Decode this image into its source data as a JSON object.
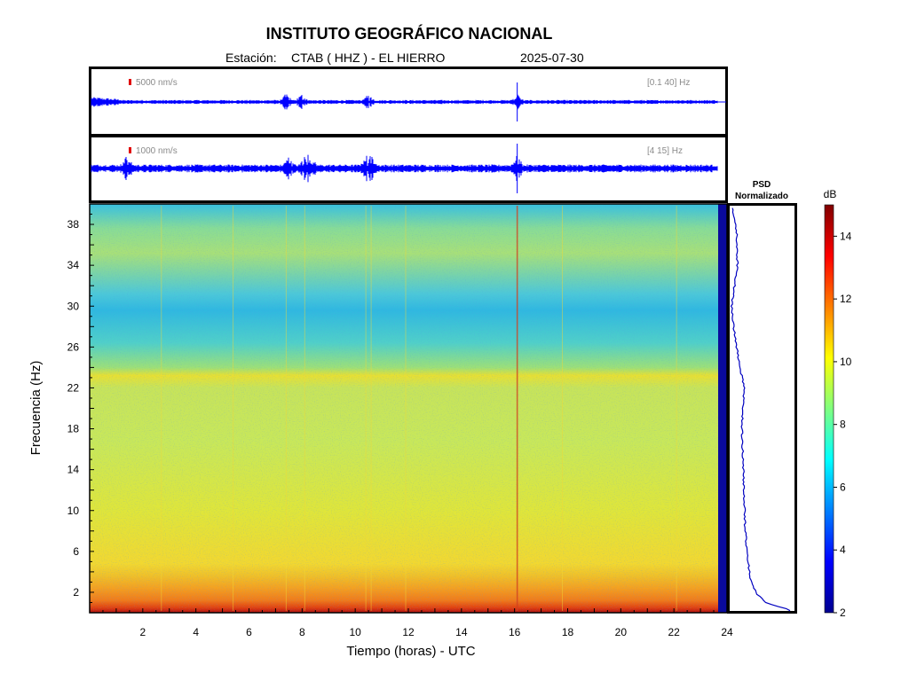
{
  "header": {
    "title": "INSTITUTO GEOGRÁFICO NACIONAL",
    "station_label": "Estación:",
    "station_value": "CTAB ( HHZ ) - EL HIERRO",
    "date": "2025-07-30"
  },
  "chart_data": [
    {
      "type": "line",
      "name": "seismogram-broadband",
      "scale_label": "5000 nm/s",
      "band_label": "[0.1 40] Hz",
      "x_range_hours": [
        0,
        23.7
      ],
      "events_hours": [
        7.4,
        8.0,
        10.5,
        16.1
      ]
    },
    {
      "type": "line",
      "name": "seismogram-filtered",
      "scale_label": "1000 nm/s",
      "band_label": "[4 15] Hz",
      "x_range_hours": [
        0,
        23.7
      ],
      "events_hours": [
        1.4,
        7.5,
        8.1,
        8.3,
        10.4,
        10.6,
        16.1
      ]
    },
    {
      "type": "heatmap",
      "name": "spectrogram",
      "xlabel": "Tiempo (horas) - UTC",
      "ylabel": "Frecuencia  (Hz)",
      "xlim": [
        0,
        24
      ],
      "ylim": [
        0,
        40
      ],
      "x_ticks": [
        2,
        4,
        6,
        8,
        10,
        12,
        14,
        16,
        18,
        20,
        22,
        24
      ],
      "y_ticks": [
        2,
        6,
        10,
        14,
        18,
        22,
        26,
        30,
        34,
        38
      ],
      "colormap": "jet",
      "color_range_db": [
        2,
        15
      ]
    },
    {
      "type": "line",
      "name": "psd-normalized",
      "title_line1": "PSD",
      "title_line2": "Normalizado",
      "profile": [
        {
          "f": 0.3,
          "v": 0.92
        },
        {
          "f": 1.0,
          "v": 0.55
        },
        {
          "f": 2.0,
          "v": 0.4
        },
        {
          "f": 3.0,
          "v": 0.33
        },
        {
          "f": 5.0,
          "v": 0.28
        },
        {
          "f": 8.0,
          "v": 0.24
        },
        {
          "f": 10.0,
          "v": 0.23
        },
        {
          "f": 14.0,
          "v": 0.21
        },
        {
          "f": 18.0,
          "v": 0.19
        },
        {
          "f": 22.0,
          "v": 0.22
        },
        {
          "f": 24.0,
          "v": 0.16
        },
        {
          "f": 27.0,
          "v": 0.08
        },
        {
          "f": 30.0,
          "v": 0.03
        },
        {
          "f": 34.0,
          "v": 0.12
        },
        {
          "f": 37.0,
          "v": 0.11
        },
        {
          "f": 39.5,
          "v": 0.05
        }
      ]
    },
    {
      "type": "heatmap",
      "name": "colorbar",
      "unit_label": "dB",
      "range": [
        2,
        15
      ],
      "ticks": [
        2,
        4,
        6,
        8,
        10,
        12,
        14
      ]
    }
  ]
}
